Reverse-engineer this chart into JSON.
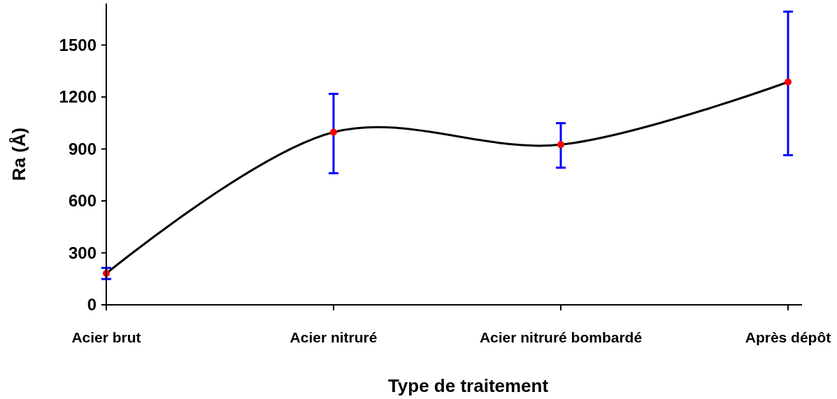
{
  "chart_data": {
    "type": "line",
    "xlabel": "Type de traitement",
    "ylabel": "Ra (Å)",
    "categories": [
      "Acier brut",
      "Acier nitruré",
      "Acier nitruré bombardé",
      "Après dépôt"
    ],
    "series": [
      {
        "color": "#000000",
        "values": [
          181,
          997,
          925,
          1287
        ],
        "errors": [
          [
            149,
            213
          ],
          [
            760,
            1218
          ],
          [
            792,
            1049
          ],
          [
            864,
            1693
          ]
        ]
      }
    ],
    "ylim": [
      0,
      1740
    ],
    "yticks": [
      0,
      300,
      600,
      900,
      1200,
      1500
    ],
    "marker": "circle",
    "line_style": "solid"
  }
}
